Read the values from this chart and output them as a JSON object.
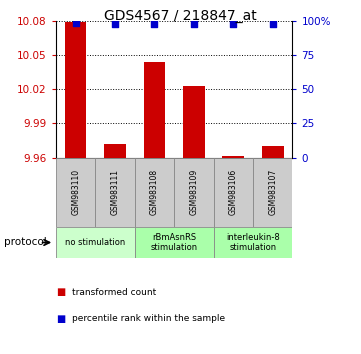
{
  "title": "GDS4567 / 218847_at",
  "samples": [
    "GSM983110",
    "GSM983111",
    "GSM983108",
    "GSM983109",
    "GSM983106",
    "GSM983107"
  ],
  "bar_values": [
    10.079,
    9.972,
    10.044,
    10.023,
    9.961,
    9.97
  ],
  "percentile_values": [
    98.5,
    98.0,
    98.0,
    98.0,
    98.0,
    98.0
  ],
  "ymin": 9.96,
  "ymax": 10.08,
  "yticks": [
    9.96,
    9.99,
    10.02,
    10.05,
    10.08
  ],
  "ytick_labels": [
    "9.96",
    "9.99",
    "10.02",
    "10.05",
    "10.08"
  ],
  "right_yticks": [
    0,
    25,
    50,
    75,
    100
  ],
  "right_ytick_labels": [
    "0",
    "25",
    "50",
    "75",
    "100%"
  ],
  "bar_color": "#cc0000",
  "dot_color": "#0000cc",
  "protocol_groups": [
    {
      "label": "no stimulation",
      "color": "#ccffcc"
    },
    {
      "label": "rBmAsnRS\nstimulation",
      "color": "#aaffaa"
    },
    {
      "label": "interleukin-8\nstimulation",
      "color": "#aaffaa"
    }
  ],
  "group_ranges": [
    [
      0,
      1
    ],
    [
      2,
      3
    ],
    [
      4,
      5
    ]
  ],
  "protocol_label": "protocol",
  "legend_items": [
    {
      "color": "#cc0000",
      "label": "transformed count"
    },
    {
      "color": "#0000cc",
      "label": "percentile rank within the sample"
    }
  ],
  "tick_color_left": "#cc0000",
  "tick_color_right": "#0000cc",
  "title_fontsize": 10,
  "bg_color": "#ffffff"
}
